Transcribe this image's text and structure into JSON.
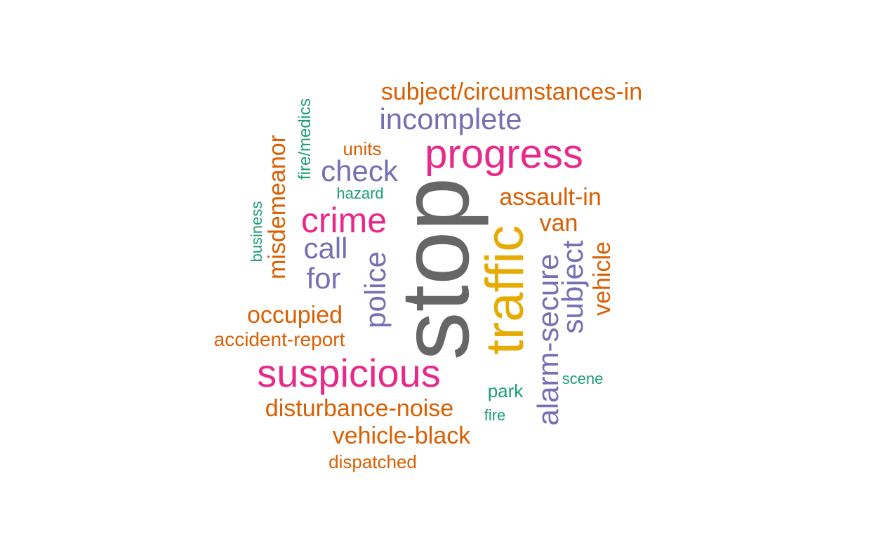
{
  "colors": {
    "gray": "#666666",
    "orange": "#d95f02",
    "purple": "#7570b3",
    "pink": "#e7298a",
    "gold": "#e6ab02",
    "teal": "#1b9e77"
  },
  "words": [
    {
      "text": "stop",
      "color": "gray"
    },
    {
      "text": "traffic",
      "color": "gold"
    },
    {
      "text": "progress",
      "color": "pink"
    },
    {
      "text": "suspicious",
      "color": "pink"
    },
    {
      "text": "crime",
      "color": "pink"
    },
    {
      "text": "incomplete",
      "color": "purple"
    },
    {
      "text": "check",
      "color": "purple"
    },
    {
      "text": "call",
      "color": "purple"
    },
    {
      "text": "for",
      "color": "purple"
    },
    {
      "text": "police",
      "color": "purple"
    },
    {
      "text": "alarm-secure",
      "color": "purple"
    },
    {
      "text": "subject",
      "color": "purple"
    },
    {
      "text": "subject/circumstances-in",
      "color": "orange"
    },
    {
      "text": "misdemeanor",
      "color": "orange"
    },
    {
      "text": "assault-in",
      "color": "orange"
    },
    {
      "text": "van",
      "color": "orange"
    },
    {
      "text": "vehicle",
      "color": "orange"
    },
    {
      "text": "occupied",
      "color": "orange"
    },
    {
      "text": "accident-report",
      "color": "orange"
    },
    {
      "text": "disturbance-noise",
      "color": "orange"
    },
    {
      "text": "vehicle-black",
      "color": "orange"
    },
    {
      "text": "dispatched",
      "color": "orange"
    },
    {
      "text": "units",
      "color": "orange"
    },
    {
      "text": "fire/medics",
      "color": "teal"
    },
    {
      "text": "hazard",
      "color": "teal"
    },
    {
      "text": "business",
      "color": "teal"
    },
    {
      "text": "park",
      "color": "teal"
    },
    {
      "text": "fire",
      "color": "teal"
    },
    {
      "text": "scene",
      "color": "teal"
    }
  ]
}
